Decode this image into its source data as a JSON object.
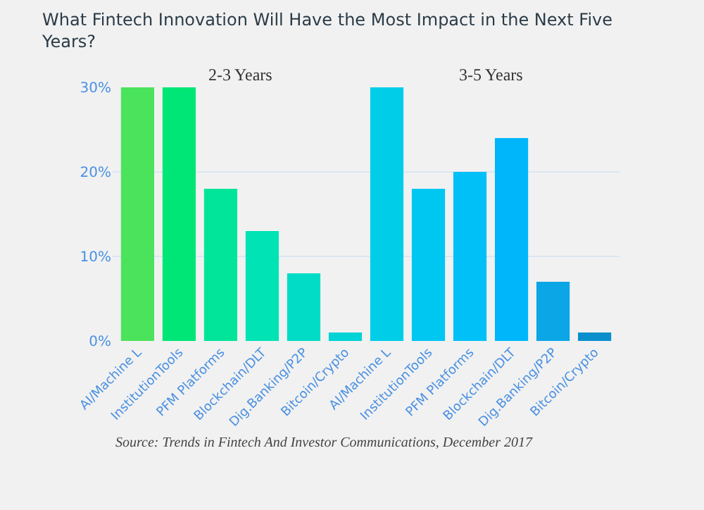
{
  "chart_data": {
    "type": "bar",
    "title": "What Fintech Innovation Will Have the Most Impact in the Next Five Years?",
    "categories": [
      "AI/Machine L",
      "InstitutionTools",
      "PFM Platforms",
      "Blockchain/DLT",
      "Dig.Banking/P2P",
      "Bitcoin/Crypto",
      "AI/Machine L",
      "InstitutionTools",
      "PFM Platforms",
      "Blockchain/DLT",
      "Dig.Banking/P2P",
      "Bitcoin/Crypto"
    ],
    "values": [
      30,
      30,
      18,
      13,
      8,
      1,
      30,
      18,
      20,
      24,
      7,
      1
    ],
    "colors": [
      "#4ce35c",
      "#00e676",
      "#00e599",
      "#00e3b4",
      "#00dcc6",
      "#00d3d6",
      "#00cde8",
      "#00c6f2",
      "#00c0f7",
      "#00b6fb",
      "#0aa6e6",
      "#0a8fcc"
    ],
    "ylim": [
      0,
      30
    ],
    "yticks": [
      {
        "value": 0,
        "label": "0%"
      },
      {
        "value": 10,
        "label": "10%"
      },
      {
        "value": 20,
        "label": "20%"
      },
      {
        "value": 30,
        "label": "30%"
      }
    ],
    "grid": "y",
    "annotations": [
      "2-3 Years",
      "3-5 Years",
      "Source: Trends in Fintech And Investor Communications, December 2017"
    ]
  }
}
